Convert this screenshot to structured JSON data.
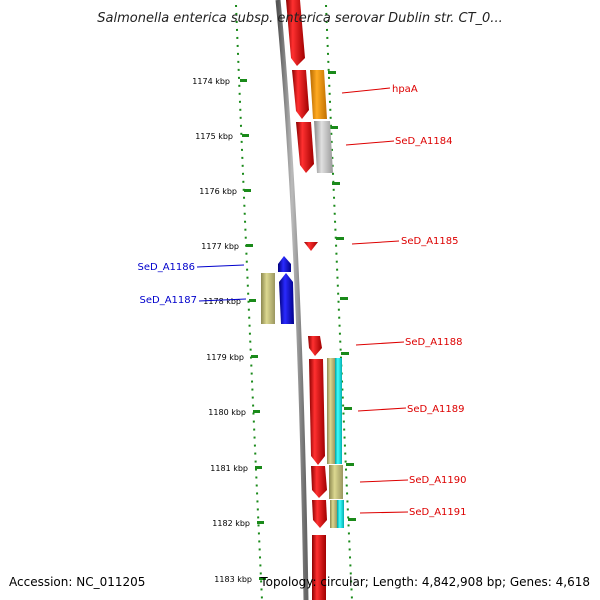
{
  "title": "Salmonella enterica subsp. enterica serovar Dublin str. CT_0...",
  "footer": {
    "accession": "Accession: NC_011205",
    "topology": "Topology: circular; Length: 4,842,908 bp; Genes: 4,618"
  },
  "ticks": [
    "1174 kbp",
    "1175 kbp",
    "1176 kbp",
    "1177 kbp",
    "1178 kbp",
    "1179 kbp",
    "1180 kbp",
    "1181 kbp",
    "1182 kbp",
    "1183 kbp"
  ],
  "gene_labels": [
    "hpaA",
    "SeD_A1184",
    "SeD_A1185",
    "SeD_A1186",
    "SeD_A1187",
    "SeD_A1188",
    "SeD_A1189",
    "SeD_A1190",
    "SeD_A1191"
  ],
  "colors": {
    "forward_cds": "#ff0000",
    "reverse_cds": "#0000ee",
    "orange_feature": "#ff9900",
    "gray_feature": "#c8c8c8",
    "khaki_feature": "#c8c47a",
    "cyan_feature": "#00e8e8",
    "backbone": "#888888",
    "tick_marks": "#1a8a1a",
    "blue_label": "#0000cc",
    "red_label": "#dd0000"
  }
}
